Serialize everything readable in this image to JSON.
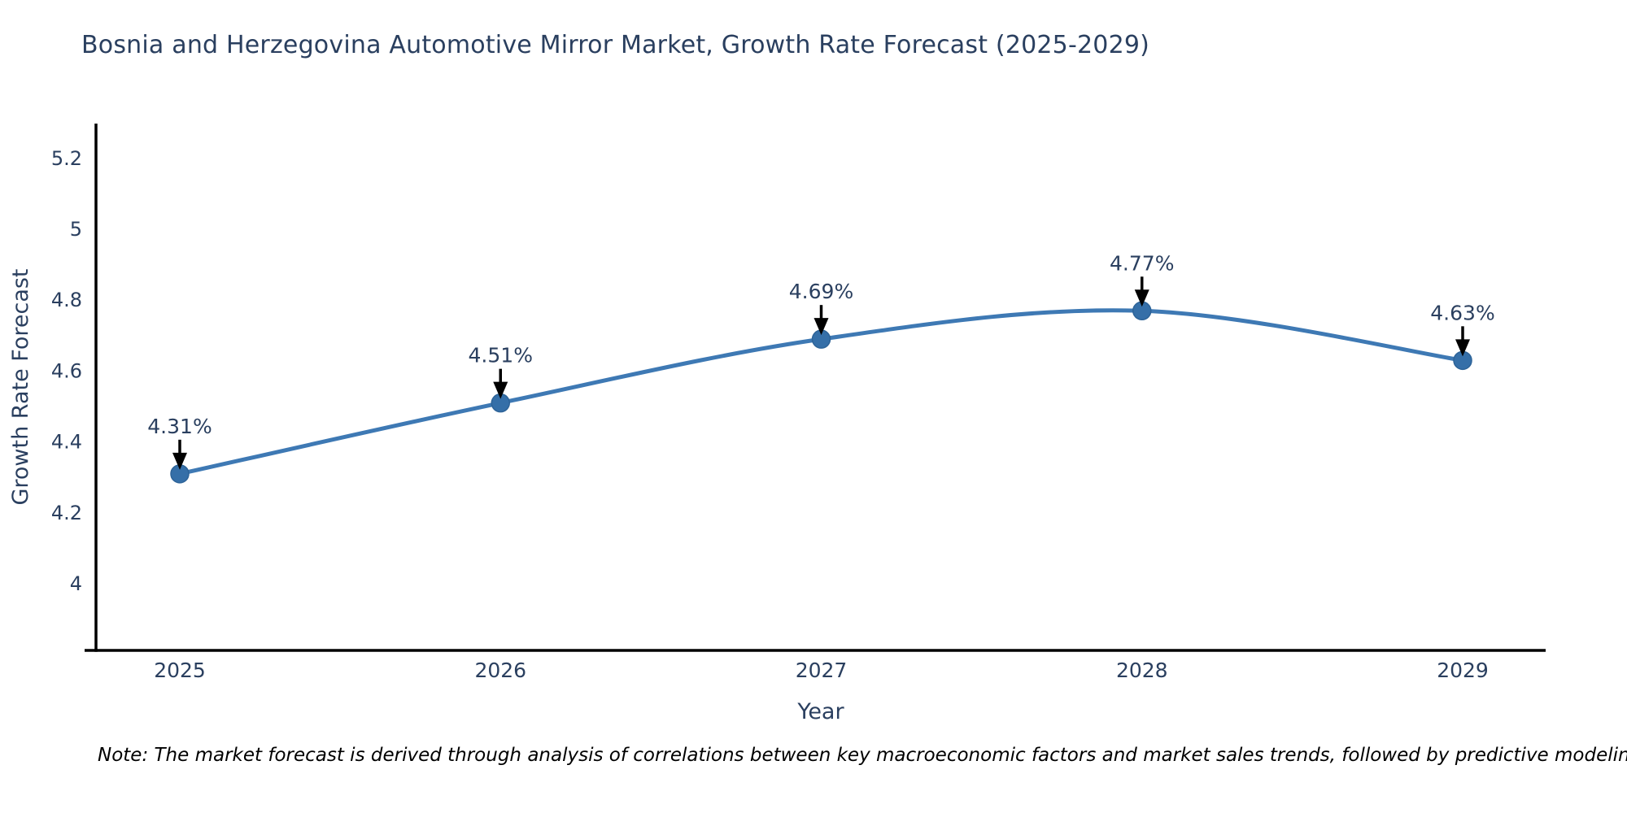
{
  "page": {
    "note": "Note: The market forecast is derived through analysis of correlations between key macroeconomic factors and market sales trends, followed by predictive modeling to project future sales"
  },
  "chart_data": {
    "type": "line",
    "line_shape": "spline",
    "title": "Bosnia and Herzegovina Automotive Mirror Market, Growth Rate Forecast (2025-2029)",
    "xlabel": "Year",
    "ylabel": "Growth Rate Forecast",
    "x": [
      2025,
      2026,
      2027,
      2028,
      2029
    ],
    "xtick_labels": [
      "2025",
      "2026",
      "2027",
      "2028",
      "2029"
    ],
    "values": [
      4.31,
      4.51,
      4.69,
      4.77,
      4.63
    ],
    "point_labels": [
      "4.31%",
      "4.51%",
      "4.69%",
      "4.77%",
      "4.63%"
    ],
    "unit": "%",
    "yticks": [
      4,
      4.2,
      4.4,
      4.6,
      4.8,
      5,
      5.2
    ],
    "ytick_labels": [
      "4",
      "4.2",
      "4.4",
      "4.6",
      "4.8",
      "5",
      "5.2"
    ],
    "ylim": [
      3.74,
      5.3
    ],
    "grid": false,
    "legend": "none",
    "annotations": "black arrow pointing down to each marker with percent label above",
    "colors": {
      "line": "#3e79b4",
      "marker": "#356fa8",
      "marker_edge": "#2d6398",
      "axis_line": "#000000",
      "text": "#2a3f5f",
      "annotation_text": "#2a3f5f",
      "arrow": "#000000",
      "note_text": "#000000",
      "background": "#ffffff"
    }
  }
}
